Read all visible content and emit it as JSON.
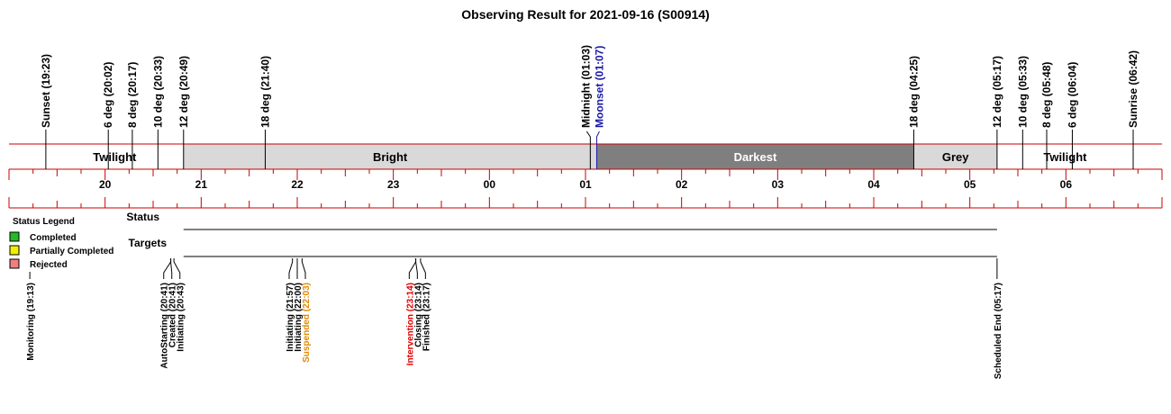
{
  "title": "Observing Result for 2021-09-16 (S00914)",
  "chart_data": {
    "type": "timeline",
    "x_unit": "hour",
    "x_range": [
      "19:00",
      "07:00"
    ],
    "tick_labels": [
      "20",
      "21",
      "22",
      "23",
      "00",
      "01",
      "02",
      "03",
      "04",
      "05",
      "06"
    ],
    "sky_events": [
      {
        "label": "Sunset (19:23)",
        "time": "19:23",
        "color": "#000000"
      },
      {
        "label": "6 deg (20:02)",
        "time": "20:02",
        "color": "#000000"
      },
      {
        "label": "8 deg (20:17)",
        "time": "20:17",
        "color": "#000000"
      },
      {
        "label": "10 deg (20:33)",
        "time": "20:33",
        "color": "#000000"
      },
      {
        "label": "12 deg (20:49)",
        "time": "20:49",
        "color": "#000000"
      },
      {
        "label": "18 deg (21:40)",
        "time": "21:40",
        "color": "#000000"
      },
      {
        "label": "Midnight (01:03)",
        "time": "01:03",
        "color": "#000000"
      },
      {
        "label": "Moonset (01:07)",
        "time": "01:07",
        "color": "#1a1aa8"
      },
      {
        "label": "18 deg (04:25)",
        "time": "04:25",
        "color": "#000000"
      },
      {
        "label": "12 deg (05:17)",
        "time": "05:17",
        "color": "#000000"
      },
      {
        "label": "10 deg (05:33)",
        "time": "05:33",
        "color": "#000000"
      },
      {
        "label": "8 deg (05:48)",
        "time": "05:48",
        "color": "#000000"
      },
      {
        "label": "6 deg (06:04)",
        "time": "06:04",
        "color": "#000000"
      },
      {
        "label": "Sunrise (06:42)",
        "time": "06:42",
        "color": "#000000"
      }
    ],
    "sky_bands": [
      {
        "label": "Twilight",
        "start": "19:23",
        "end": "20:49",
        "fill": "#ffffff",
        "text_color": "#000000"
      },
      {
        "label": "Bright",
        "start": "20:49",
        "end": "01:07",
        "fill": "#d9d9d9",
        "text_color": "#000000"
      },
      {
        "label": "Darkest",
        "start": "01:07",
        "end": "04:25",
        "fill": "#7f7f7f",
        "text_color": "#ffffff"
      },
      {
        "label": "Grey",
        "start": "04:25",
        "end": "05:17",
        "fill": "#d9d9d9",
        "text_color": "#000000"
      },
      {
        "label": "Twilight",
        "start": "05:17",
        "end": "06:42",
        "fill": "#ffffff",
        "text_color": "#000000"
      }
    ],
    "rows": [
      "Status",
      "Targets"
    ],
    "row_range": [
      "20:49",
      "05:17"
    ],
    "status_events": [
      {
        "label": "Monitoring (19:13)",
        "time": "19:13",
        "color": "#000000",
        "group": "monitoring"
      },
      {
        "label": "AutoStarting (20:41)",
        "time": "20:41",
        "color": "#000000",
        "group": "start"
      },
      {
        "label": "Created (20:41)",
        "time": "20:41",
        "color": "#000000",
        "group": "start"
      },
      {
        "label": "Initiating (20:43)",
        "time": "20:43",
        "color": "#000000",
        "group": "start"
      },
      {
        "label": "Initiating (21:57)",
        "time": "21:57",
        "color": "#000000",
        "group": "init2"
      },
      {
        "label": "Initiating (22:00)",
        "time": "22:00",
        "color": "#000000",
        "group": "init2"
      },
      {
        "label": "Suspended (22:03)",
        "time": "22:03",
        "color": "#e08a00",
        "group": "init2"
      },
      {
        "label": "Intervention (23:14)",
        "time": "23:14",
        "color": "#e00000",
        "group": "end"
      },
      {
        "label": "Closing (23:14)",
        "time": "23:14",
        "color": "#000000",
        "group": "end"
      },
      {
        "label": "Finished (23:17)",
        "time": "23:17",
        "color": "#000000",
        "group": "end"
      },
      {
        "label": "Scheduled End (05:17)",
        "time": "05:17",
        "color": "#000000",
        "group": "schedend"
      }
    ],
    "legend": {
      "title": "Status Legend",
      "items": [
        {
          "label": "Completed",
          "color": "#22bb22"
        },
        {
          "label": "Partially Completed",
          "color": "#f0f000"
        },
        {
          "label": "Rejected",
          "color": "#f08080"
        }
      ]
    },
    "accent_color": "#cc0000"
  }
}
